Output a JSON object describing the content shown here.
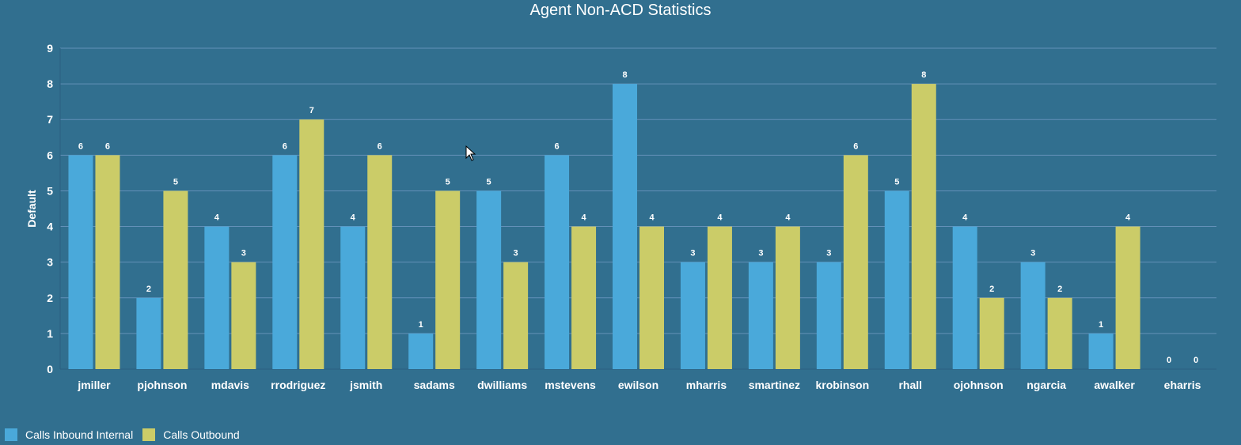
{
  "chart_data": {
    "type": "bar",
    "title": "Agent Non-ACD Statistics",
    "ylabel": "Default",
    "xlabel": "",
    "ylim": [
      0,
      9
    ],
    "yticks": [
      0,
      1,
      2,
      3,
      4,
      5,
      6,
      7,
      8,
      9
    ],
    "grid": true,
    "legend_position": "bottom-left",
    "categories": [
      "jmiller",
      "pjohnson",
      "mdavis",
      "rrodriguez",
      "jsmith",
      "sadams",
      "dwilliams",
      "mstevens",
      "ewilson",
      "mharris",
      "smartinez",
      "krobinson",
      "rhall",
      "ojohnson",
      "ngarcia",
      "awalker",
      "eharris"
    ],
    "series": [
      {
        "name": "Calls Inbound Internal",
        "color": "#4aa9da",
        "values": [
          6,
          2,
          4,
          6,
          4,
          1,
          5,
          6,
          8,
          3,
          3,
          3,
          5,
          4,
          3,
          1,
          0
        ]
      },
      {
        "name": "Calls Outbound",
        "color": "#cbcc68",
        "values": [
          6,
          5,
          3,
          7,
          6,
          5,
          3,
          4,
          4,
          4,
          4,
          6,
          8,
          2,
          2,
          4,
          0
        ]
      }
    ]
  }
}
